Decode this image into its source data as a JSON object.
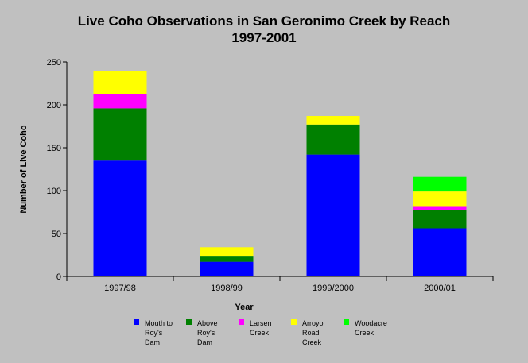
{
  "chart_data": {
    "type": "bar",
    "stacked": true,
    "title": [
      "Live Coho Observations in San Geronimo Creek by Reach",
      "1997-2001"
    ],
    "xlabel": "Year",
    "ylabel": "Number of Live Coho",
    "ylim": [
      0,
      250
    ],
    "yticks": [
      0,
      50,
      100,
      150,
      200,
      250
    ],
    "grid": false,
    "legend_position": "bottom",
    "categories": [
      "1997/98",
      "1998/99",
      "1999/2000",
      "2000/01"
    ],
    "series": [
      {
        "name": "Mouth to Roy's Dam",
        "legend_lines": [
          "Mouth to",
          "Roy's",
          "Dam"
        ],
        "color": "#0000ff",
        "values": [
          135,
          17,
          142,
          56
        ]
      },
      {
        "name": "Above Roy's Dam",
        "legend_lines": [
          "Above",
          "Roy's",
          "Dam"
        ],
        "color": "#008000",
        "values": [
          61,
          7,
          35,
          21
        ]
      },
      {
        "name": "Larsen Creek",
        "legend_lines": [
          "Larsen",
          "Creek"
        ],
        "color": "#ff00ff",
        "values": [
          17,
          0,
          0,
          5
        ]
      },
      {
        "name": "Arroyo Road Creek",
        "legend_lines": [
          "Arroyo",
          "Road",
          "Creek"
        ],
        "color": "#ffff00",
        "values": [
          26,
          10,
          10,
          17
        ]
      },
      {
        "name": "Woodacre Creek",
        "legend_lines": [
          "Woodacre",
          "Creek"
        ],
        "color": "#00ff00",
        "values": [
          0,
          0,
          0,
          17
        ]
      }
    ]
  }
}
